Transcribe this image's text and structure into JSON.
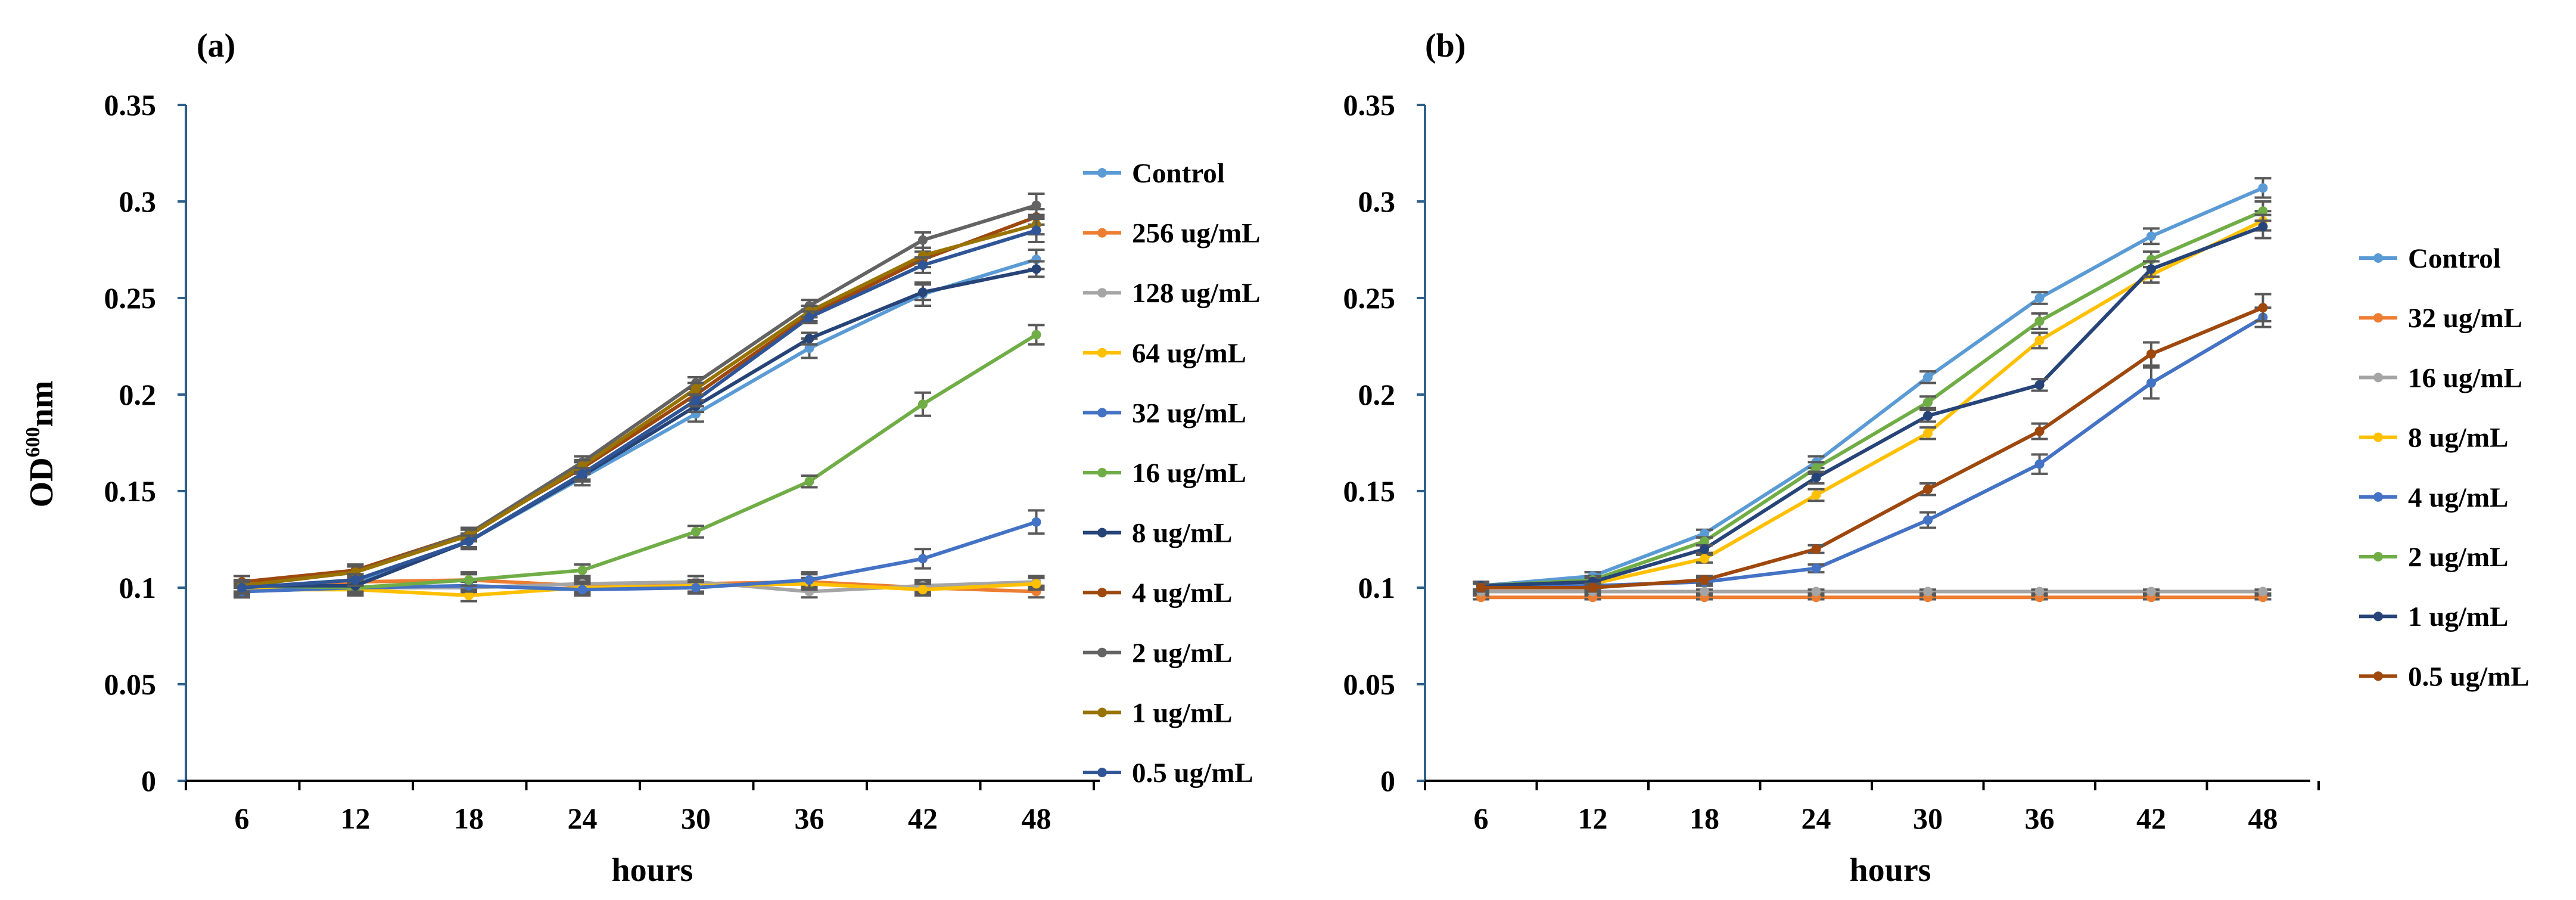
{
  "ylabel": {
    "main": "OD",
    "sup": "600",
    "unit": "nm"
  },
  "chart_data": [
    {
      "type": "line",
      "panel_label": "(a)",
      "xlabel": "hours",
      "ylabel": "OD600nm",
      "x": [
        6,
        12,
        18,
        24,
        30,
        36,
        42,
        48
      ],
      "ylim": [
        0,
        0.35
      ],
      "yticks": [
        0,
        0.05,
        0.1,
        0.15,
        0.2,
        0.25,
        0.3,
        0.35
      ],
      "ytick_labels": [
        "0",
        "0.05",
        "0.1",
        "0.15",
        "0.2",
        "0.25",
        "0.3",
        "0.35"
      ],
      "legend_position": "right",
      "series": [
        {
          "name": "Control",
          "color": "#5b9bd5",
          "values": [
            0.1,
            0.103,
            0.124,
            0.157,
            0.19,
            0.224,
            0.252,
            0.27
          ],
          "errors": [
            0.004,
            0.004,
            0.004,
            0.004,
            0.004,
            0.005,
            0.006,
            0.005
          ]
        },
        {
          "name": "256 ug/mL",
          "color": "#ed7d31",
          "values": [
            0.099,
            0.103,
            0.104,
            0.101,
            0.102,
            0.103,
            0.1,
            0.098
          ],
          "errors": [
            0.003,
            0.004,
            0.004,
            0.003,
            0.004,
            0.004,
            0.003,
            0.003
          ]
        },
        {
          "name": "128 ug/mL",
          "color": "#a5a5a5",
          "values": [
            0.098,
            0.1,
            0.1,
            0.102,
            0.103,
            0.098,
            0.101,
            0.103
          ],
          "errors": [
            0.003,
            0.003,
            0.003,
            0.003,
            0.003,
            0.003,
            0.003,
            0.003
          ]
        },
        {
          "name": "64 ug/mL",
          "color": "#ffc000",
          "values": [
            0.099,
            0.099,
            0.096,
            0.1,
            0.101,
            0.102,
            0.099,
            0.102
          ],
          "errors": [
            0.003,
            0.003,
            0.003,
            0.003,
            0.003,
            0.003,
            0.003,
            0.003
          ]
        },
        {
          "name": "32 ug/mL",
          "color": "#4472c4",
          "values": [
            0.098,
            0.1,
            0.101,
            0.099,
            0.1,
            0.104,
            0.115,
            0.134
          ],
          "errors": [
            0.003,
            0.003,
            0.003,
            0.003,
            0.003,
            0.004,
            0.005,
            0.006
          ]
        },
        {
          "name": "16 ug/mL",
          "color": "#70ad47",
          "values": [
            0.101,
            0.1,
            0.104,
            0.109,
            0.129,
            0.155,
            0.195,
            0.231
          ],
          "errors": [
            0.003,
            0.003,
            0.003,
            0.003,
            0.003,
            0.003,
            0.006,
            0.005
          ]
        },
        {
          "name": "8 ug/mL",
          "color": "#264478",
          "values": [
            0.101,
            0.101,
            0.124,
            0.158,
            0.194,
            0.229,
            0.253,
            0.265
          ],
          "errors": [
            0.003,
            0.003,
            0.003,
            0.003,
            0.003,
            0.003,
            0.004,
            0.004
          ]
        },
        {
          "name": "4 ug/mL",
          "color": "#9e480e",
          "values": [
            0.103,
            0.109,
            0.128,
            0.162,
            0.2,
            0.241,
            0.27,
            0.292
          ],
          "errors": [
            0.003,
            0.003,
            0.003,
            0.003,
            0.003,
            0.003,
            0.004,
            0.004
          ]
        },
        {
          "name": "2 ug/mL",
          "color": "#636363",
          "values": [
            0.101,
            0.108,
            0.128,
            0.165,
            0.206,
            0.246,
            0.28,
            0.298
          ],
          "errors": [
            0.003,
            0.003,
            0.003,
            0.003,
            0.003,
            0.003,
            0.004,
            0.006
          ]
        },
        {
          "name": "1 ug/mL",
          "color": "#997300",
          "values": [
            0.101,
            0.108,
            0.127,
            0.163,
            0.203,
            0.243,
            0.272,
            0.288
          ],
          "errors": [
            0.003,
            0.003,
            0.003,
            0.003,
            0.003,
            0.003,
            0.004,
            0.005
          ]
        },
        {
          "name": "0.5 ug/mL",
          "color": "#2f5597",
          "values": [
            0.1,
            0.104,
            0.124,
            0.159,
            0.197,
            0.24,
            0.267,
            0.285
          ],
          "errors": [
            0.003,
            0.003,
            0.003,
            0.003,
            0.003,
            0.003,
            0.004,
            0.006
          ]
        }
      ]
    },
    {
      "type": "line",
      "panel_label": "(b)",
      "xlabel": "hours",
      "ylabel": "OD600nm",
      "x": [
        6,
        12,
        18,
        24,
        30,
        36,
        42,
        48
      ],
      "ylim": [
        0,
        0.35
      ],
      "yticks": [
        0,
        0.05,
        0.1,
        0.15,
        0.2,
        0.25,
        0.3,
        0.35
      ],
      "ytick_labels": [
        "0",
        "0.05",
        "0.1",
        "0.15",
        "0.2",
        "0.25",
        "0.3",
        "0.35"
      ],
      "legend_position": "right",
      "series": [
        {
          "name": "Control",
          "color": "#5b9bd5",
          "values": [
            0.101,
            0.106,
            0.128,
            0.165,
            0.209,
            0.25,
            0.282,
            0.307
          ],
          "errors": [
            0.002,
            0.002,
            0.002,
            0.003,
            0.003,
            0.003,
            0.004,
            0.005
          ]
        },
        {
          "name": "32 ug/mL",
          "color": "#ed7d31",
          "values": [
            0.095,
            0.095,
            0.095,
            0.095,
            0.095,
            0.095,
            0.095,
            0.095
          ],
          "errors": [
            0.001,
            0.001,
            0.001,
            0.001,
            0.001,
            0.001,
            0.001,
            0.001
          ]
        },
        {
          "name": "16 ug/mL",
          "color": "#a5a5a5",
          "values": [
            0.098,
            0.098,
            0.098,
            0.098,
            0.098,
            0.098,
            0.098,
            0.098
          ],
          "errors": [
            0.001,
            0.001,
            0.001,
            0.001,
            0.001,
            0.001,
            0.001,
            0.001
          ]
        },
        {
          "name": "8 ug/mL",
          "color": "#ffc000",
          "values": [
            0.1,
            0.102,
            0.115,
            0.148,
            0.18,
            0.228,
            0.262,
            0.29
          ],
          "errors": [
            0.002,
            0.002,
            0.002,
            0.003,
            0.003,
            0.004,
            0.004,
            0.005
          ]
        },
        {
          "name": "4 ug/mL",
          "color": "#4472c4",
          "values": [
            0.1,
            0.101,
            0.103,
            0.11,
            0.135,
            0.164,
            0.206,
            0.24
          ],
          "errors": [
            0.002,
            0.002,
            0.002,
            0.002,
            0.004,
            0.005,
            0.008,
            0.005
          ]
        },
        {
          "name": "2 ug/mL",
          "color": "#70ad47",
          "values": [
            0.101,
            0.104,
            0.124,
            0.162,
            0.196,
            0.238,
            0.27,
            0.295
          ],
          "errors": [
            0.002,
            0.002,
            0.002,
            0.003,
            0.003,
            0.004,
            0.004,
            0.005
          ]
        },
        {
          "name": "1 ug/mL",
          "color": "#264478",
          "values": [
            0.101,
            0.103,
            0.12,
            0.157,
            0.189,
            0.205,
            0.265,
            0.287
          ],
          "errors": [
            0.002,
            0.002,
            0.002,
            0.003,
            0.003,
            0.003,
            0.004,
            0.006
          ]
        },
        {
          "name": "0.5 ug/mL",
          "color": "#9e480e",
          "values": [
            0.1,
            0.1,
            0.104,
            0.12,
            0.151,
            0.181,
            0.221,
            0.245
          ],
          "errors": [
            0.002,
            0.002,
            0.002,
            0.002,
            0.003,
            0.004,
            0.006,
            0.007
          ]
        }
      ]
    }
  ]
}
